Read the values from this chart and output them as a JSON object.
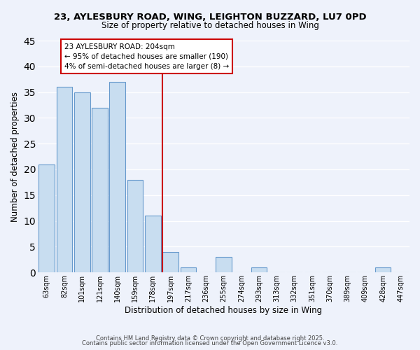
{
  "title_line1": "23, AYLESBURY ROAD, WING, LEIGHTON BUZZARD, LU7 0PD",
  "title_line2": "Size of property relative to detached houses in Wing",
  "xlabel": "Distribution of detached houses by size in Wing",
  "ylabel": "Number of detached properties",
  "bar_labels": [
    "63sqm",
    "82sqm",
    "101sqm",
    "121sqm",
    "140sqm",
    "159sqm",
    "178sqm",
    "197sqm",
    "217sqm",
    "236sqm",
    "255sqm",
    "274sqm",
    "293sqm",
    "313sqm",
    "332sqm",
    "351sqm",
    "370sqm",
    "389sqm",
    "409sqm",
    "428sqm",
    "447sqm"
  ],
  "bar_heights": [
    21,
    36,
    35,
    32,
    37,
    18,
    11,
    4,
    1,
    0,
    3,
    0,
    1,
    0,
    0,
    0,
    0,
    0,
    0,
    1,
    0
  ],
  "bar_color": "#c8ddf0",
  "bar_edge_color": "#6699cc",
  "ylim": [
    0,
    45
  ],
  "yticks": [
    0,
    5,
    10,
    15,
    20,
    25,
    30,
    35,
    40,
    45
  ],
  "vline_pos": 7.0,
  "vline_color": "#cc0000",
  "annotation_title": "23 AYLESBURY ROAD: 204sqm",
  "annotation_line1": "← 95% of detached houses are smaller (190)",
  "annotation_line2": "4% of semi-detached houses are larger (8) →",
  "annotation_box_color": "#ffffff",
  "annotation_box_edge": "#cc0000",
  "footer_line1": "Contains HM Land Registry data © Crown copyright and database right 2025.",
  "footer_line2": "Contains public sector information licensed under the Open Government Licence v3.0.",
  "background_color": "#eef2fb",
  "grid_color": "#ffffff"
}
